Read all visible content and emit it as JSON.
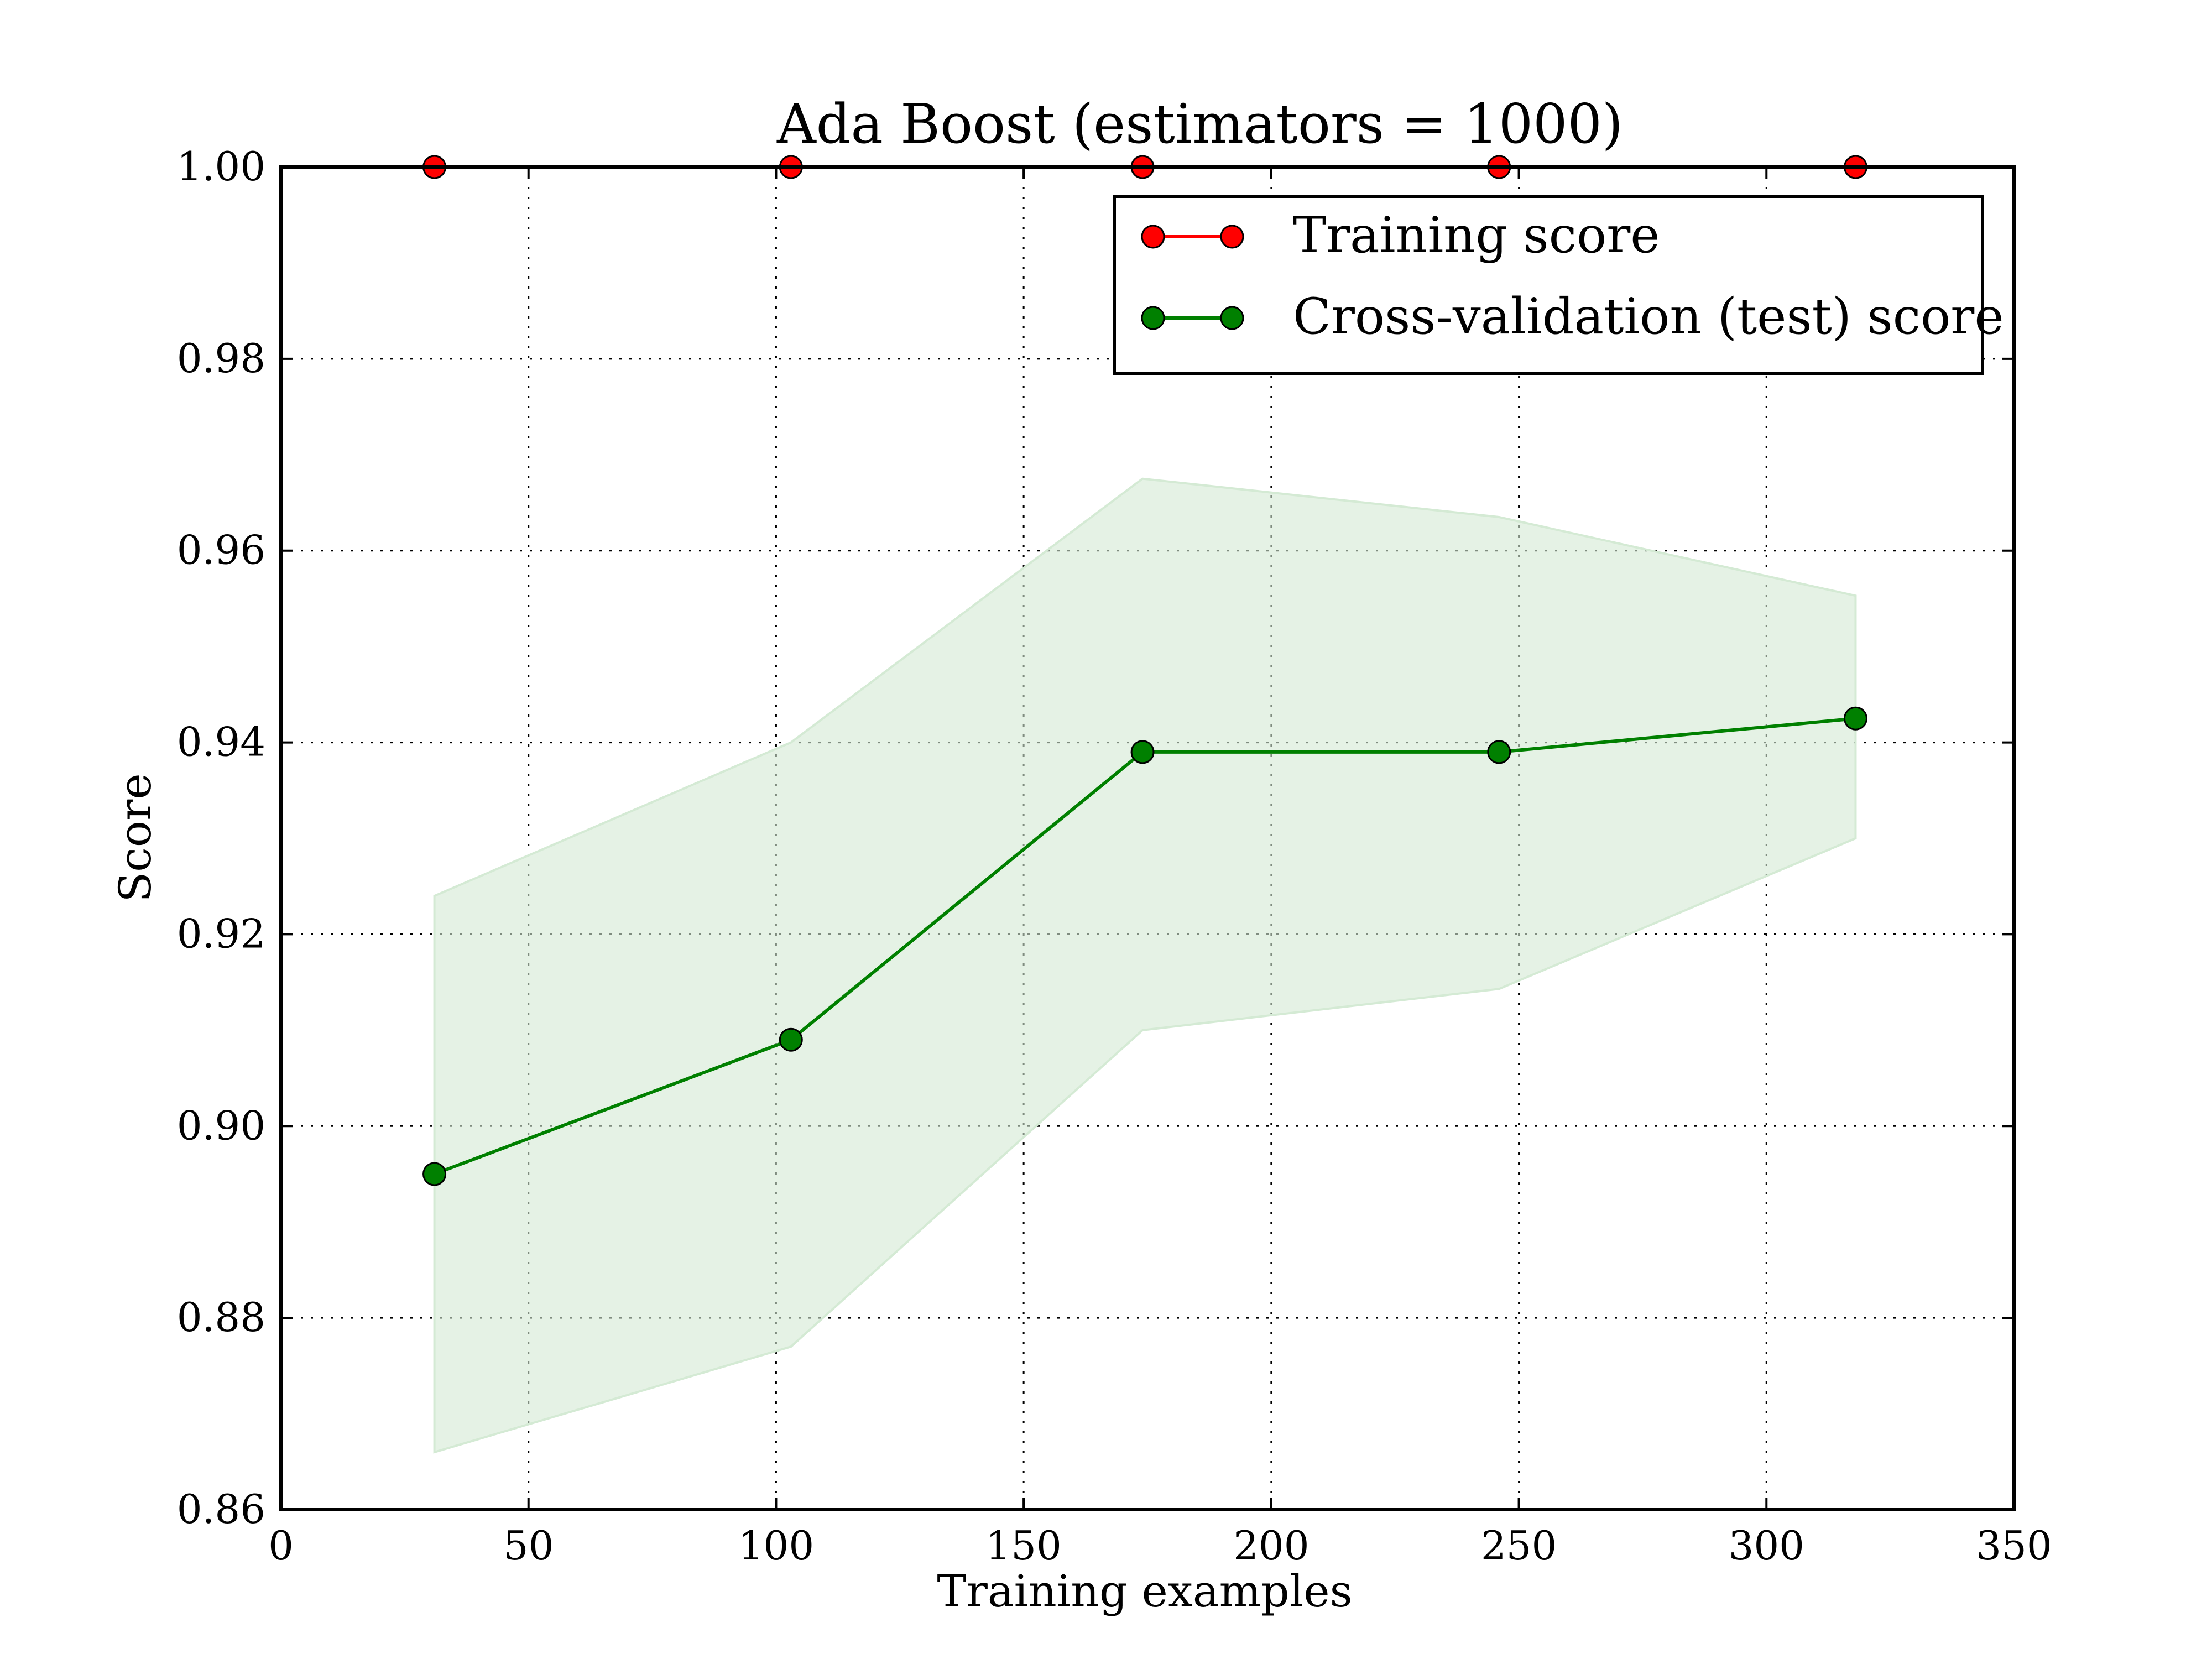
{
  "chart_data": {
    "type": "line",
    "title": "Ada Boost (estimators = 1000)",
    "xlabel": "Training examples",
    "ylabel": "Score",
    "xlim": [
      0,
      350
    ],
    "ylim": [
      0.86,
      1.0
    ],
    "xticks": [
      0,
      50,
      100,
      150,
      200,
      250,
      300,
      350
    ],
    "yticks": [
      0.86,
      0.88,
      0.9,
      0.92,
      0.94,
      0.96,
      0.98,
      1.0
    ],
    "xtick_labels": [
      "0",
      "50",
      "100",
      "150",
      "200",
      "250",
      "300",
      "350"
    ],
    "ytick_labels": [
      "0.86",
      "0.88",
      "0.90",
      "0.92",
      "0.94",
      "0.96",
      "0.98",
      "1.00"
    ],
    "grid": true,
    "legend_position": "top-right",
    "x": [
      31,
      103,
      174,
      246,
      318
    ],
    "series": [
      {
        "name": "Training score",
        "color": "#ff0000",
        "values": [
          1.0,
          1.0,
          1.0,
          1.0,
          1.0
        ]
      },
      {
        "name": "Cross-validation (test) score",
        "color": "#008000",
        "values": [
          0.895,
          0.909,
          0.939,
          0.939,
          0.9425
        ],
        "band_lower": [
          0.866,
          0.877,
          0.91,
          0.9143,
          0.93
        ],
        "band_upper": [
          0.924,
          0.94,
          0.9675,
          0.9635,
          0.9553
        ],
        "band_color": "#d4ead4"
      }
    ]
  }
}
